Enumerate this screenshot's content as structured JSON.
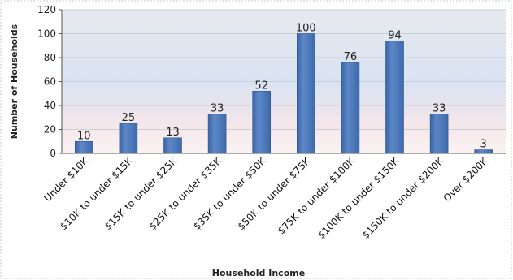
{
  "chart_data": {
    "type": "bar",
    "title": "",
    "xlabel": "Household Income",
    "ylabel": "Number of Households",
    "ylim": [
      0,
      120
    ],
    "yticks": [
      0,
      20,
      40,
      60,
      80,
      100,
      120
    ],
    "grid": true,
    "legend": "none",
    "categories": [
      "Under $10K",
      "$10K to under $15K",
      "$15K to under $25K",
      "$25K to under $35K",
      "$35K to under $50K",
      "$50K to under $75K",
      "$75K to under $100K",
      "$100K to under $150K",
      "$150K to under $200K",
      "Over $200K"
    ],
    "values": [
      10,
      25,
      13,
      33,
      52,
      100,
      76,
      94,
      33,
      3
    ],
    "colors": {
      "bar": "#4a76b8",
      "bar_edge": "#2c5590",
      "grid": "#c8cdd6",
      "frame": "#c0c0c0"
    }
  }
}
